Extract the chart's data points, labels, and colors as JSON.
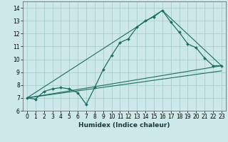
{
  "xlabel": "Humidex (Indice chaleur)",
  "bg_color": "#cce8e8",
  "grid_color": "#aacece",
  "line_color": "#1a6e60",
  "xlim": [
    -0.5,
    23.5
  ],
  "ylim": [
    6,
    14.5
  ],
  "yticks": [
    6,
    7,
    8,
    9,
    10,
    11,
    12,
    13,
    14
  ],
  "xticks": [
    0,
    1,
    2,
    3,
    4,
    5,
    6,
    7,
    8,
    9,
    10,
    11,
    12,
    13,
    14,
    15,
    16,
    17,
    18,
    19,
    20,
    21,
    22,
    23
  ],
  "main_line": {
    "x": [
      0,
      1,
      2,
      3,
      4,
      5,
      6,
      7,
      8,
      9,
      10,
      11,
      12,
      13,
      14,
      15,
      16,
      17,
      18,
      19,
      20,
      21,
      22,
      23
    ],
    "y": [
      7.0,
      6.9,
      7.5,
      7.7,
      7.8,
      7.7,
      7.4,
      6.5,
      7.8,
      9.2,
      10.3,
      11.3,
      11.6,
      12.5,
      13.0,
      13.3,
      13.8,
      12.9,
      12.1,
      11.2,
      10.9,
      10.1,
      9.5,
      9.5
    ]
  },
  "line2": {
    "x": [
      0,
      16,
      23
    ],
    "y": [
      7.0,
      13.8,
      9.5
    ]
  },
  "line3": {
    "x": [
      0,
      23
    ],
    "y": [
      7.0,
      9.5
    ]
  },
  "line4": {
    "x": [
      0,
      23
    ],
    "y": [
      7.0,
      9.1
    ]
  },
  "tick_fontsize": 5.5,
  "xlabel_fontsize": 6.5,
  "xlabel_fontweight": "bold"
}
